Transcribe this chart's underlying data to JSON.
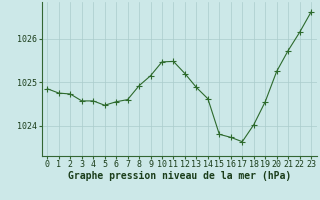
{
  "x": [
    0,
    1,
    2,
    3,
    4,
    5,
    6,
    7,
    8,
    9,
    10,
    11,
    12,
    13,
    14,
    15,
    16,
    17,
    18,
    19,
    20,
    21,
    22,
    23
  ],
  "y": [
    1024.85,
    1024.75,
    1024.73,
    1024.57,
    1024.57,
    1024.47,
    1024.55,
    1024.6,
    1024.92,
    1025.15,
    1025.47,
    1025.48,
    1025.2,
    1024.88,
    1024.62,
    1023.8,
    1023.73,
    1023.63,
    1024.02,
    1024.55,
    1025.25,
    1025.73,
    1026.15,
    1026.62
  ],
  "line_color": "#2d6a2d",
  "marker": "+",
  "marker_size": 4.0,
  "bg_color": "#cce8e8",
  "grid_color": "#aacccc",
  "ylabel_ticks": [
    1024,
    1025,
    1026
  ],
  "xlabel_label": "Graphe pression niveau de la mer (hPa)",
  "xlabel_fontsize": 7,
  "tick_fontsize": 6,
  "ylim": [
    1023.3,
    1026.85
  ],
  "xlim": [
    -0.5,
    23.5
  ]
}
